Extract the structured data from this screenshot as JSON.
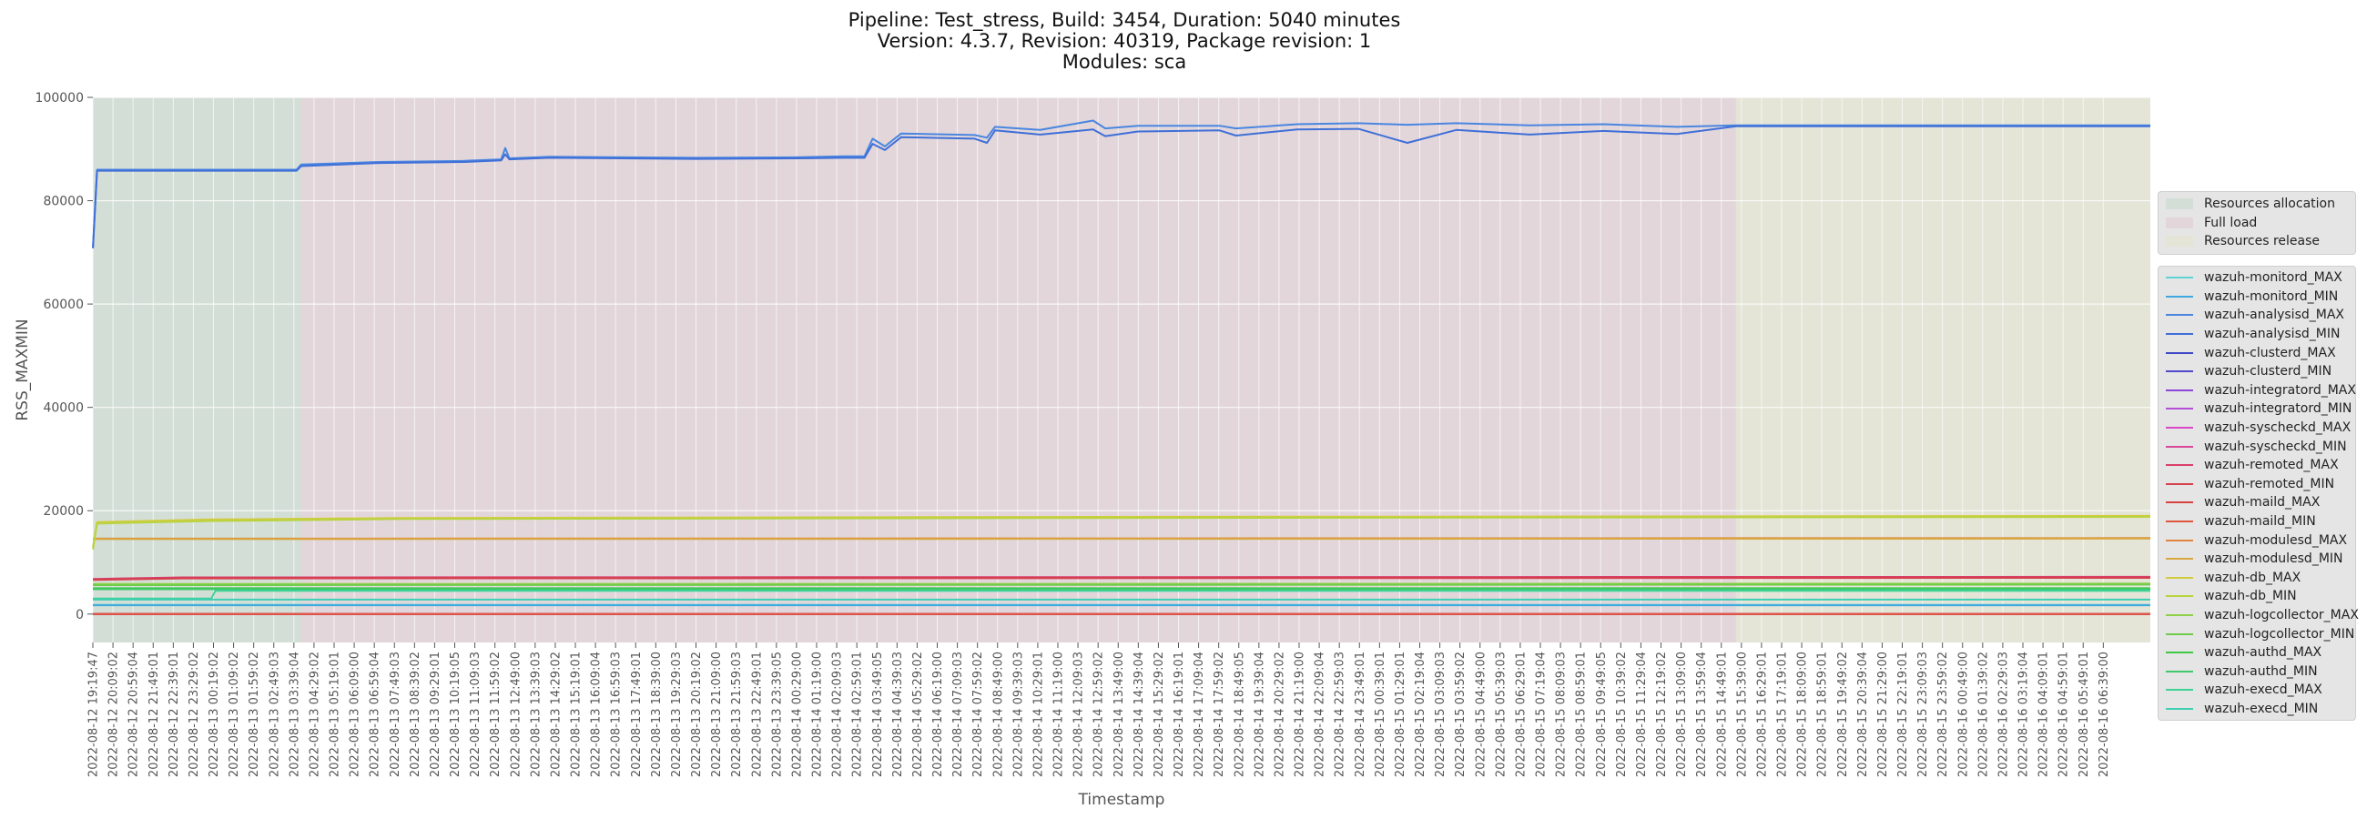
{
  "title": {
    "line1": "Pipeline: Test_stress, Build: 3454, Duration: 5040 minutes",
    "line2": "Version: 4.3.7, Revision: 40319, Package revision: 1",
    "line3": "Modules: sca"
  },
  "chart_data": {
    "type": "line",
    "xlabel": "Timestamp",
    "ylabel": "RSS_MAXMIN",
    "ylim": [
      -5500,
      100000
    ],
    "y_ticks": [
      0,
      20000,
      40000,
      60000,
      80000,
      100000
    ],
    "grid": true,
    "legend_placement": "right",
    "x_range": [
      "2022-08-12 19:19:47",
      "2022-08-16 07:20:00"
    ],
    "x_tick_start": "2022-08-12 19:19:47",
    "x_tick_second": "2022-08-12 20:09:02",
    "x_tick_end": "2022-08-16 06:39:00",
    "x_tick_labels": [
      "2022-08-12 19:19:47",
      "2022-08-12 20:09:02",
      "2022-08-12 20:59:04",
      "2022-08-12 21:49:01",
      "2022-08-12 22:39:01",
      "2022-08-12 23:29:02",
      "2022-08-13 00:19:02",
      "2022-08-13 01:09:02",
      "2022-08-13 01:59:02",
      "2022-08-13 02:49:03",
      "2022-08-13 03:39:04",
      "2022-08-13 04:29:02",
      "2022-08-13 05:19:01",
      "2022-08-13 06:09:00",
      "2022-08-13 06:59:04",
      "2022-08-13 07:49:03",
      "2022-08-13 08:39:02",
      "2022-08-13 09:29:01",
      "2022-08-13 10:19:05",
      "2022-08-13 11:09:03",
      "2022-08-13 11:59:02",
      "2022-08-13 12:49:00",
      "2022-08-13 13:39:03",
      "2022-08-13 14:29:02",
      "2022-08-13 15:19:01",
      "2022-08-13 16:09:04",
      "2022-08-13 16:59:03",
      "2022-08-13 17:49:01",
      "2022-08-13 18:39:00",
      "2022-08-13 19:29:03",
      "2022-08-13 20:19:02",
      "2022-08-13 21:09:00",
      "2022-08-13 21:59:03",
      "2022-08-13 22:49:01",
      "2022-08-13 23:39:05",
      "2022-08-14 00:29:00",
      "2022-08-14 01:19:00",
      "2022-08-14 02:09:03",
      "2022-08-14 02:59:01",
      "2022-08-14 03:49:05",
      "2022-08-14 04:39:03",
      "2022-08-14 05:29:02",
      "2022-08-14 06:19:00",
      "2022-08-14 07:09:03",
      "2022-08-14 07:59:02",
      "2022-08-14 08:49:00",
      "2022-08-14 09:39:03",
      "2022-08-14 10:29:01",
      "2022-08-14 11:19:00",
      "2022-08-14 12:09:03",
      "2022-08-14 12:59:02",
      "2022-08-14 13:49:00",
      "2022-08-14 14:39:04",
      "2022-08-14 15:29:02",
      "2022-08-14 16:19:01",
      "2022-08-14 17:09:04",
      "2022-08-14 17:59:02",
      "2022-08-14 18:49:05",
      "2022-08-14 19:39:04",
      "2022-08-14 20:29:02",
      "2022-08-14 21:19:00",
      "2022-08-14 22:09:04",
      "2022-08-14 22:59:03",
      "2022-08-14 23:49:01",
      "2022-08-15 00:39:01",
      "2022-08-15 01:29:01",
      "2022-08-15 02:19:04",
      "2022-08-15 03:09:03",
      "2022-08-15 03:59:02",
      "2022-08-15 04:49:00",
      "2022-08-15 05:39:03",
      "2022-08-15 06:29:01",
      "2022-08-15 07:19:04",
      "2022-08-15 08:09:03",
      "2022-08-15 08:59:01",
      "2022-08-15 09:49:05",
      "2022-08-15 10:39:02",
      "2022-08-15 11:29:04",
      "2022-08-15 12:19:02",
      "2022-08-15 13:09:00",
      "2022-08-15 13:59:04",
      "2022-08-15 14:49:01",
      "2022-08-15 15:39:00",
      "2022-08-15 16:29:01",
      "2022-08-15 17:19:01",
      "2022-08-15 18:09:00",
      "2022-08-15 18:59:01",
      "2022-08-15 19:49:02",
      "2022-08-15 20:39:04",
      "2022-08-15 21:29:00",
      "2022-08-15 22:19:01",
      "2022-08-15 23:09:03",
      "2022-08-15 23:59:02",
      "2022-08-16 00:49:00",
      "2022-08-16 01:39:02",
      "2022-08-16 02:29:03",
      "2022-08-16 03:19:04",
      "2022-08-16 04:09:01",
      "2022-08-16 04:59:01",
      "2022-08-16 05:49:01",
      "2022-08-16 06:39:00"
    ],
    "phases": [
      {
        "name": "Resources allocation",
        "start": "2022-08-12 19:19:47",
        "end": "2022-08-13 03:50:00",
        "color": "#d3ded6"
      },
      {
        "name": "Full load",
        "start": "2022-08-13 03:50:00",
        "end": "2022-08-15 14:25:00",
        "color": "#e2d6da"
      },
      {
        "name": "Resources release",
        "start": "2022-08-15 14:25:00",
        "end": "2022-08-16 07:20:00",
        "color": "#e4e4d7"
      }
    ],
    "series": [
      {
        "name": "wazuh-monitord_MAX",
        "color": "#5fd3d3",
        "points": [
          [
            "2022-08-12 19:19:47",
            1800
          ],
          [
            "2022-08-16 07:20:00",
            1800
          ]
        ]
      },
      {
        "name": "wazuh-monitord_MIN",
        "color": "#3fa9df",
        "points": [
          [
            "2022-08-12 19:19:47",
            1700
          ],
          [
            "2022-08-16 07:20:00",
            1700
          ]
        ]
      },
      {
        "name": "wazuh-analysisd_MAX",
        "color": "#4a86e0",
        "points": [
          [
            "2022-08-12 19:20:00",
            71000
          ],
          [
            "2022-08-12 19:30:00",
            86000
          ],
          [
            "2022-08-13 03:39:00",
            86000
          ],
          [
            "2022-08-13 03:50:00",
            87000
          ],
          [
            "2022-08-13 07:00:00",
            87500
          ],
          [
            "2022-08-13 10:30:00",
            87700
          ],
          [
            "2022-08-13 12:00:00",
            88000
          ],
          [
            "2022-08-13 12:10:00",
            90200
          ],
          [
            "2022-08-13 12:20:00",
            88200
          ],
          [
            "2022-08-13 14:00:00",
            88500
          ],
          [
            "2022-08-13 20:00:00",
            88300
          ],
          [
            "2022-08-14 00:00:00",
            88400
          ],
          [
            "2022-08-14 02:00:00",
            88600
          ],
          [
            "2022-08-14 02:50:00",
            88600
          ],
          [
            "2022-08-14 03:10:00",
            92000
          ],
          [
            "2022-08-14 03:40:00",
            90500
          ],
          [
            "2022-08-14 04:20:00",
            93000
          ],
          [
            "2022-08-14 07:20:00",
            92700
          ],
          [
            "2022-08-14 07:50:00",
            92200
          ],
          [
            "2022-08-14 08:10:00",
            94300
          ],
          [
            "2022-08-14 10:00:00",
            93700
          ],
          [
            "2022-08-14 12:10:00",
            95500
          ],
          [
            "2022-08-14 12:40:00",
            94000
          ],
          [
            "2022-08-14 14:00:00",
            94500
          ],
          [
            "2022-08-14 17:20:00",
            94500
          ],
          [
            "2022-08-14 18:00:00",
            94000
          ],
          [
            "2022-08-14 20:30:00",
            94800
          ],
          [
            "2022-08-14 23:00:00",
            95000
          ],
          [
            "2022-08-15 01:00:00",
            94700
          ],
          [
            "2022-08-15 03:00:00",
            95000
          ],
          [
            "2022-08-15 06:00:00",
            94600
          ],
          [
            "2022-08-15 09:00:00",
            94800
          ],
          [
            "2022-08-15 12:00:00",
            94300
          ],
          [
            "2022-08-15 14:25:00",
            94600
          ],
          [
            "2022-08-16 07:20:00",
            94600
          ]
        ]
      },
      {
        "name": "wazuh-analysisd_MIN",
        "color": "#3f6fd8",
        "points": [
          [
            "2022-08-12 19:20:00",
            70800
          ],
          [
            "2022-08-12 19:30:00",
            85800
          ],
          [
            "2022-08-13 03:39:00",
            85800
          ],
          [
            "2022-08-13 03:50:00",
            86700
          ],
          [
            "2022-08-13 07:00:00",
            87300
          ],
          [
            "2022-08-13 10:30:00",
            87500
          ],
          [
            "2022-08-13 12:00:00",
            87800
          ],
          [
            "2022-08-13 12:10:00",
            89000
          ],
          [
            "2022-08-13 12:20:00",
            88000
          ],
          [
            "2022-08-13 14:00:00",
            88300
          ],
          [
            "2022-08-13 20:00:00",
            88100
          ],
          [
            "2022-08-14 00:00:00",
            88200
          ],
          [
            "2022-08-14 02:00:00",
            88300
          ],
          [
            "2022-08-14 02:50:00",
            88300
          ],
          [
            "2022-08-14 03:10:00",
            91000
          ],
          [
            "2022-08-14 03:40:00",
            89800
          ],
          [
            "2022-08-14 04:20:00",
            92300
          ],
          [
            "2022-08-14 07:20:00",
            92000
          ],
          [
            "2022-08-14 07:50:00",
            91200
          ],
          [
            "2022-08-14 08:10:00",
            93600
          ],
          [
            "2022-08-14 10:00:00",
            92800
          ],
          [
            "2022-08-14 12:10:00",
            93800
          ],
          [
            "2022-08-14 12:40:00",
            92500
          ],
          [
            "2022-08-14 14:00:00",
            93400
          ],
          [
            "2022-08-14 17:20:00",
            93600
          ],
          [
            "2022-08-14 18:00:00",
            92600
          ],
          [
            "2022-08-14 20:30:00",
            93800
          ],
          [
            "2022-08-14 23:00:00",
            93900
          ],
          [
            "2022-08-15 01:00:00",
            91200
          ],
          [
            "2022-08-15 03:00:00",
            93700
          ],
          [
            "2022-08-15 06:00:00",
            92800
          ],
          [
            "2022-08-15 09:00:00",
            93500
          ],
          [
            "2022-08-15 12:00:00",
            92900
          ],
          [
            "2022-08-15 14:25:00",
            94400
          ],
          [
            "2022-08-16 07:20:00",
            94400
          ]
        ]
      },
      {
        "name": "wazuh-clusterd_MAX",
        "color": "#3e48c6",
        "points": [
          [
            "2022-08-12 19:19:47",
            0
          ],
          [
            "2022-08-16 07:20:00",
            0
          ]
        ]
      },
      {
        "name": "wazuh-clusterd_MIN",
        "color": "#5248cc",
        "points": [
          [
            "2022-08-12 19:19:47",
            0
          ],
          [
            "2022-08-16 07:20:00",
            0
          ]
        ]
      },
      {
        "name": "wazuh-integratord_MAX",
        "color": "#8a46d8",
        "points": [
          [
            "2022-08-12 19:19:47",
            0
          ],
          [
            "2022-08-16 07:20:00",
            0
          ]
        ]
      },
      {
        "name": "wazuh-integratord_MIN",
        "color": "#b54ed8",
        "points": [
          [
            "2022-08-12 19:19:47",
            0
          ],
          [
            "2022-08-16 07:20:00",
            0
          ]
        ]
      },
      {
        "name": "wazuh-syscheckd_MAX",
        "color": "#d848c6",
        "points": [
          [
            "2022-08-12 19:19:47",
            0
          ],
          [
            "2022-08-16 07:20:00",
            0
          ]
        ]
      },
      {
        "name": "wazuh-syscheckd_MIN",
        "color": "#d84896",
        "points": [
          [
            "2022-08-12 19:19:47",
            0
          ],
          [
            "2022-08-16 07:20:00",
            0
          ]
        ]
      },
      {
        "name": "wazuh-remoted_MAX",
        "color": "#d83f6a",
        "points": [
          [
            "2022-08-12 19:20:00",
            6800
          ],
          [
            "2022-08-12 23:00:00",
            7100
          ],
          [
            "2022-08-16 07:20:00",
            7200
          ]
        ]
      },
      {
        "name": "wazuh-remoted_MIN",
        "color": "#d63f4c",
        "points": [
          [
            "2022-08-12 19:20:00",
            6600
          ],
          [
            "2022-08-12 23:00:00",
            6900
          ],
          [
            "2022-08-16 07:20:00",
            7000
          ]
        ]
      },
      {
        "name": "wazuh-maild_MAX",
        "color": "#d8423f",
        "points": [
          [
            "2022-08-12 19:19:47",
            0
          ],
          [
            "2022-08-16 07:20:00",
            0
          ]
        ]
      },
      {
        "name": "wazuh-maild_MIN",
        "color": "#e0573f",
        "points": [
          [
            "2022-08-12 19:19:47",
            0
          ],
          [
            "2022-08-16 07:20:00",
            0
          ]
        ]
      },
      {
        "name": "wazuh-modulesd_MAX",
        "color": "#e0853f",
        "points": [
          [
            "2022-08-12 19:20:00",
            14600
          ],
          [
            "2022-08-16 07:20:00",
            14700
          ]
        ]
      },
      {
        "name": "wazuh-modulesd_MIN",
        "color": "#d8a83f",
        "points": [
          [
            "2022-08-12 19:20:00",
            14500
          ],
          [
            "2022-08-16 07:20:00",
            14600
          ]
        ]
      },
      {
        "name": "wazuh-db_MAX",
        "color": "#d2cb3f",
        "points": [
          [
            "2022-08-12 19:20:00",
            13000
          ],
          [
            "2022-08-12 19:30:00",
            17800
          ],
          [
            "2022-08-13 00:00:00",
            18300
          ],
          [
            "2022-08-13 08:00:00",
            18600
          ],
          [
            "2022-08-14 12:00:00",
            18800
          ],
          [
            "2022-08-16 07:20:00",
            19000
          ]
        ]
      },
      {
        "name": "wazuh-db_MIN",
        "color": "#b8d43f",
        "points": [
          [
            "2022-08-12 19:20:00",
            12500
          ],
          [
            "2022-08-12 19:30:00",
            17500
          ],
          [
            "2022-08-13 00:00:00",
            18000
          ],
          [
            "2022-08-13 08:00:00",
            18400
          ],
          [
            "2022-08-14 12:00:00",
            18600
          ],
          [
            "2022-08-16 07:20:00",
            18800
          ]
        ]
      },
      {
        "name": "wazuh-logcollector_MAX",
        "color": "#8fd048",
        "points": [
          [
            "2022-08-12 19:19:47",
            5800
          ],
          [
            "2022-08-16 07:20:00",
            5900
          ]
        ]
      },
      {
        "name": "wazuh-logcollector_MIN",
        "color": "#6fcc48",
        "points": [
          [
            "2022-08-12 19:19:47",
            5600
          ],
          [
            "2022-08-16 07:20:00",
            5700
          ]
        ]
      },
      {
        "name": "wazuh-authd_MAX",
        "color": "#3fc846",
        "points": [
          [
            "2022-08-12 19:19:47",
            5000
          ],
          [
            "2022-08-16 07:20:00",
            5000
          ]
        ]
      },
      {
        "name": "wazuh-authd_MIN",
        "color": "#3fc86e",
        "points": [
          [
            "2022-08-12 19:19:47",
            4800
          ],
          [
            "2022-08-16 07:20:00",
            4800
          ]
        ]
      },
      {
        "name": "wazuh-execd_MAX",
        "color": "#3fd296",
        "points": [
          [
            "2022-08-12 19:19:47",
            3000
          ],
          [
            "2022-08-13 00:10:00",
            3000
          ],
          [
            "2022-08-13 00:20:00",
            4500
          ],
          [
            "2022-08-16 07:20:00",
            4500
          ]
        ]
      },
      {
        "name": "wazuh-execd_MIN",
        "color": "#3fcfb4",
        "points": [
          [
            "2022-08-12 19:19:47",
            2800
          ],
          [
            "2022-08-16 07:20:00",
            2800
          ]
        ]
      }
    ]
  }
}
